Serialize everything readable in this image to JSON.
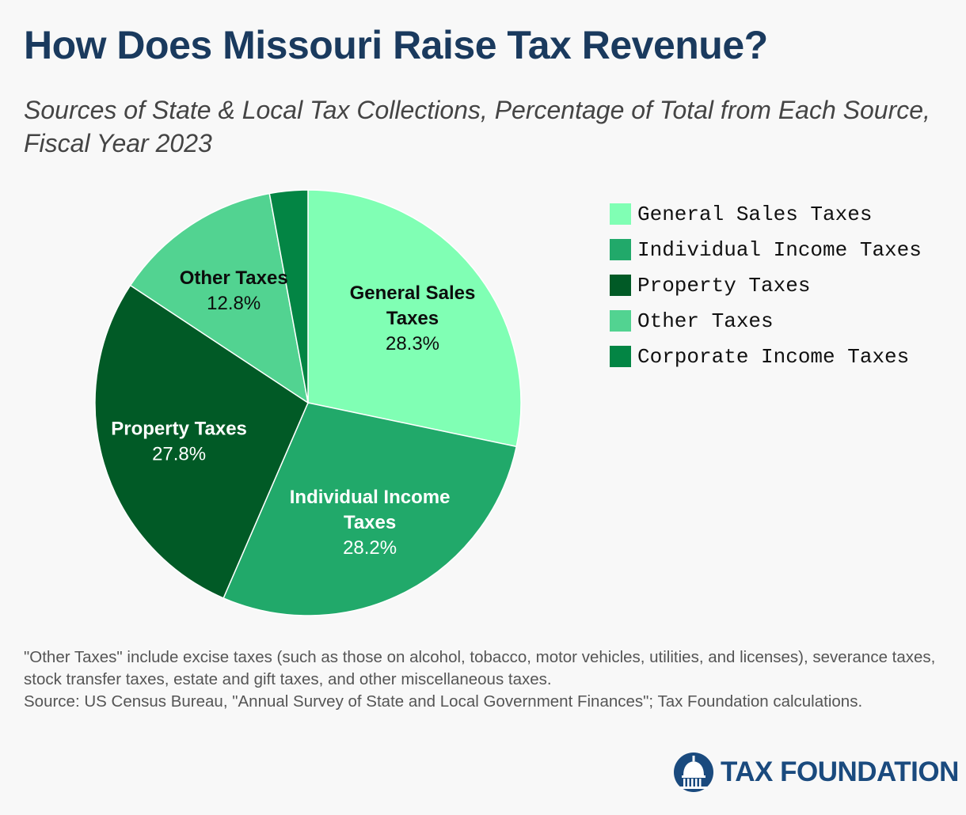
{
  "chart_data": {
    "type": "pie",
    "title": "How Does Missouri Raise Tax Revenue?",
    "subtitle": "Sources of State & Local Tax Collections, Percentage of Total from Each Source, Fiscal Year 2023",
    "slices": [
      {
        "name": "General Sales Taxes",
        "value": 28.3,
        "display": "28.3%",
        "color": "#80ffb4",
        "label_lines": [
          "General Sales",
          "Taxes"
        ],
        "label_dark": true
      },
      {
        "name": "Individual Income Taxes",
        "value": 28.2,
        "display": "28.2%",
        "color": "#21a96a",
        "label_lines": [
          "Individual Income",
          "Taxes"
        ],
        "label_dark": false
      },
      {
        "name": "Property Taxes",
        "value": 27.8,
        "display": "27.8%",
        "color": "#015a26",
        "label_lines": [
          "Property Taxes"
        ],
        "label_dark": false
      },
      {
        "name": "Other Taxes",
        "value": 12.8,
        "display": "12.8%",
        "color": "#52d391",
        "label_lines": [
          "Other Taxes"
        ],
        "label_dark": true
      },
      {
        "name": "Corporate Income Taxes",
        "value": 2.9,
        "display": "",
        "color": "#038544",
        "label_lines": [],
        "label_dark": false
      }
    ],
    "legend_position": "right",
    "legend": [
      {
        "name": "General Sales Taxes",
        "color": "#80ffb4"
      },
      {
        "name": "Individual Income Taxes",
        "color": "#21a96a"
      },
      {
        "name": "Property Taxes",
        "color": "#015a26"
      },
      {
        "name": "Other Taxes",
        "color": "#52d391"
      },
      {
        "name": "Corporate Income Taxes",
        "color": "#038544"
      }
    ]
  },
  "footnote": {
    "line1": "\"Other Taxes\" include excise taxes (such as those on alcohol, tobacco, motor vehicles, utilities, and licenses), severance taxes, stock transfer taxes, estate and gift taxes, and other miscellaneous taxes.",
    "line2": "Source: US Census Bureau, \"Annual Survey of State and Local Government Finances\"; Tax Foundation calculations."
  },
  "logo": {
    "text": "TAX FOUNDATION",
    "icon": "capitol-dome-icon",
    "color": "#1a4a7e"
  }
}
